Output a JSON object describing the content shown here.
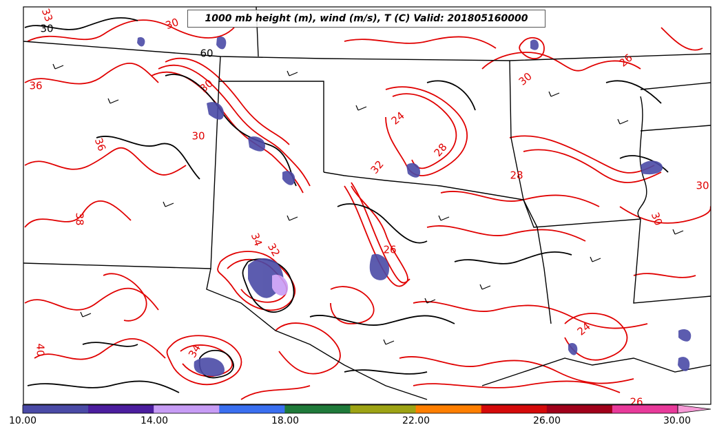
{
  "title": "1000 mb height (m), wind (m/s), T (C) Valid: 201805160000",
  "colorbar": {
    "colors": [
      "#4a4aa6",
      "#4b1d9e",
      "#c79cf5",
      "#3a6ff0",
      "#1f7a3a",
      "#9da314",
      "#ff7f00",
      "#d40a0a",
      "#a0001a",
      "#e83a9a"
    ],
    "end_arrow_color": "#f59ad6",
    "range": [
      10,
      30
    ],
    "tick_labels": [
      "10.00",
      "14.00",
      "18.00",
      "22.00",
      "26.00",
      "30.00"
    ],
    "tick_values": [
      10,
      14,
      18,
      22,
      26,
      30
    ]
  },
  "contour_labels": [
    {
      "text": "30",
      "color": "#e00000"
    },
    {
      "text": "33",
      "color": "#e00000"
    },
    {
      "text": "36",
      "color": "#e00000"
    },
    {
      "text": "30",
      "color": "#e00000"
    },
    {
      "text": "30",
      "color": "#e00000"
    },
    {
      "text": "36",
      "color": "#e00000"
    },
    {
      "text": "38",
      "color": "#e00000"
    },
    {
      "text": "34",
      "color": "#e00000"
    },
    {
      "text": "32",
      "color": "#e00000"
    },
    {
      "text": "24",
      "color": "#e00000"
    },
    {
      "text": "32",
      "color": "#e00000"
    },
    {
      "text": "28",
      "color": "#e00000"
    },
    {
      "text": "28",
      "color": "#e00000"
    },
    {
      "text": "26",
      "color": "#e00000"
    },
    {
      "text": "30",
      "color": "#e00000"
    },
    {
      "text": "26",
      "color": "#e00000"
    },
    {
      "text": "30",
      "color": "#e00000"
    },
    {
      "text": "30",
      "color": "#e00000"
    },
    {
      "text": "24",
      "color": "#e00000"
    },
    {
      "text": "26",
      "color": "#e00000"
    },
    {
      "text": "40",
      "color": "#e00000"
    },
    {
      "text": "34",
      "color": "#e00000"
    },
    {
      "text": "60",
      "color": "#000000"
    },
    {
      "text": "30",
      "color": "#000000"
    }
  ],
  "colors": {
    "temperature_contour": "#e00000",
    "height_contour": "#000000",
    "boundaries": "#000000",
    "precip": "#4a4aa6"
  }
}
